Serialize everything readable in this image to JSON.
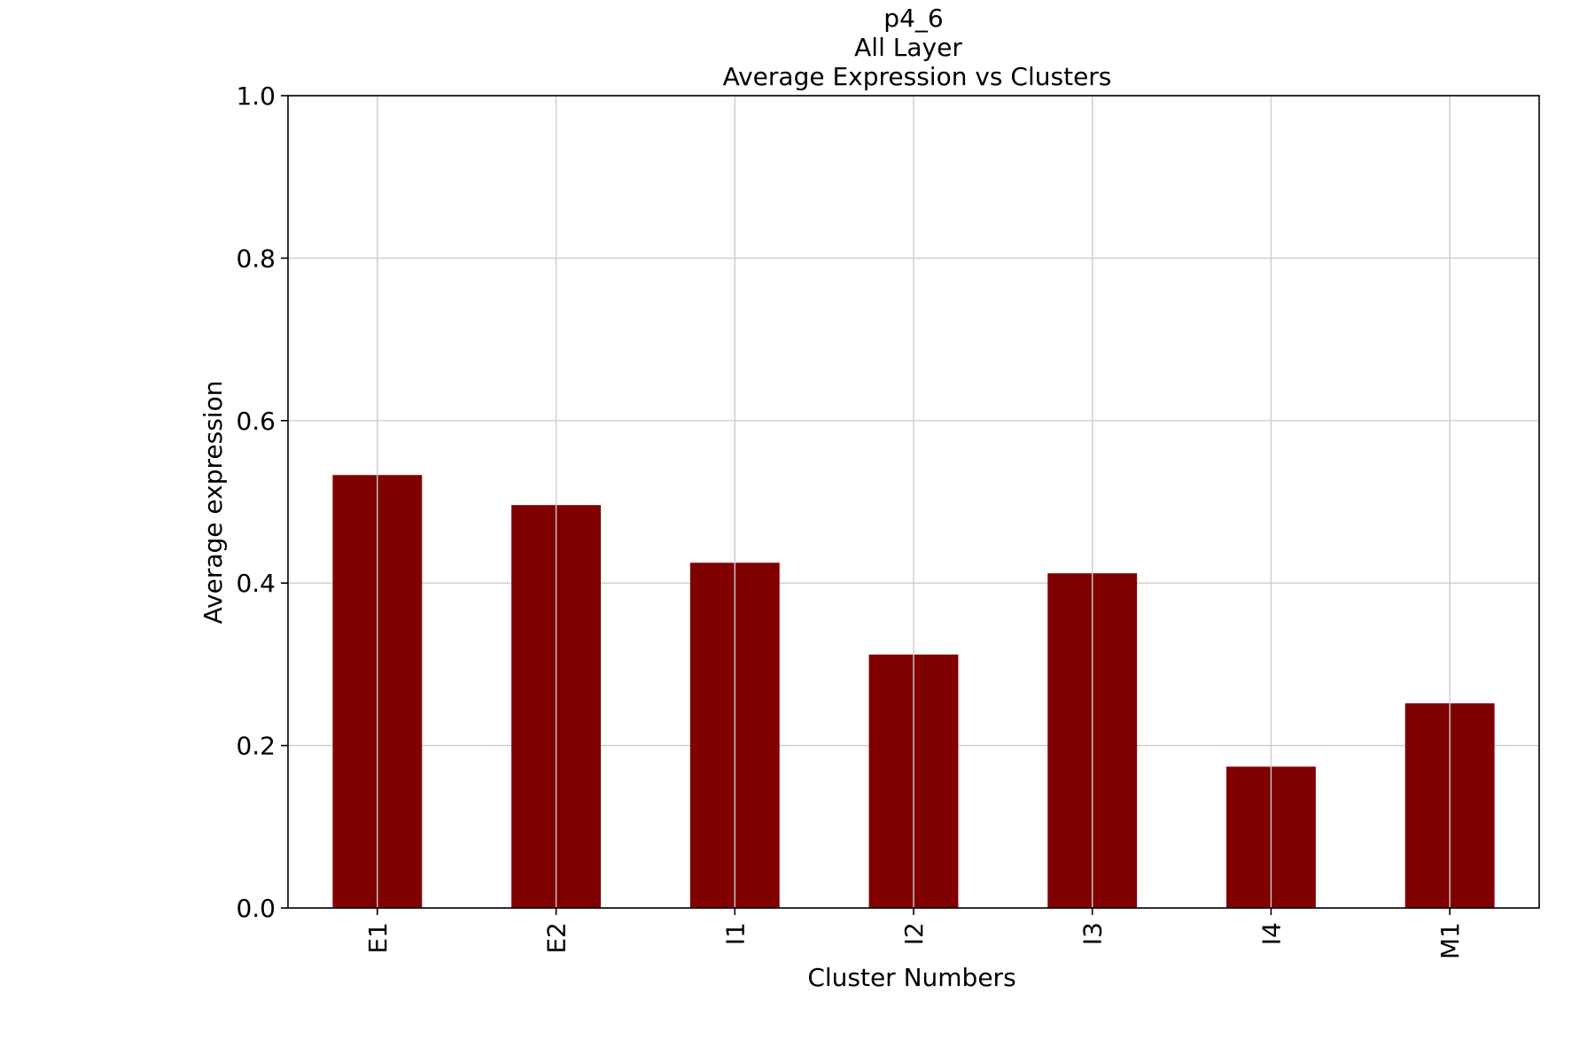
{
  "chart_data": {
    "type": "bar",
    "title_lines": [
      "p4_6",
      "All Layer",
      "Average Expression vs Clusters"
    ],
    "xlabel": "Cluster Numbers",
    "ylabel": "Average expression",
    "categories": [
      "E1",
      "E2",
      "I1",
      "I2",
      "I3",
      "I4",
      "M1"
    ],
    "values": [
      0.533,
      0.496,
      0.425,
      0.312,
      0.412,
      0.174,
      0.252
    ],
    "ylim": [
      0.0,
      1.0
    ],
    "yticks": [
      0.0,
      0.2,
      0.4,
      0.6,
      0.8,
      1.0
    ],
    "ytick_labels": [
      "0.0",
      "0.2",
      "0.4",
      "0.6",
      "0.8",
      "1.0"
    ],
    "grid": true,
    "bar_color": "#800000",
    "grid_color": "#cccccc",
    "axis_color": "#000000"
  }
}
